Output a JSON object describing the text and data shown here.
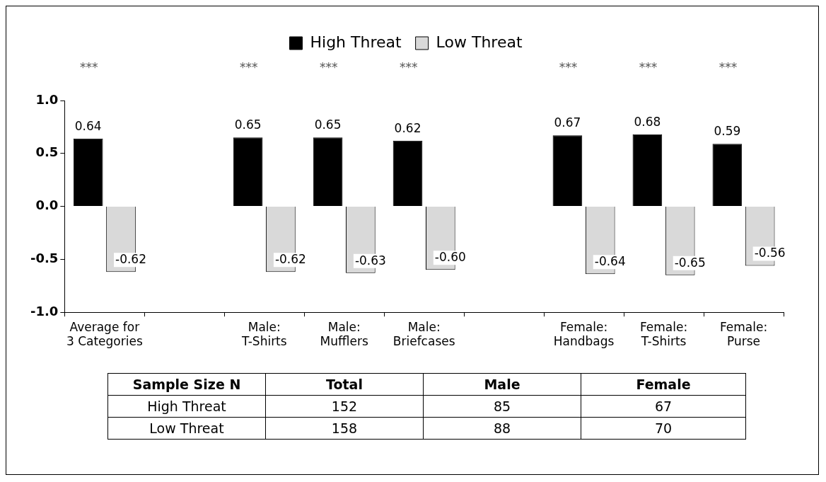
{
  "chart_data": [
    {
      "type": "bar",
      "categories": [
        "Average for\n3 Categories",
        null,
        "Male:\nT-Shirts",
        "Male:\nMufflers",
        "Male:\nBriefcases",
        null,
        "Female:\nHandbags",
        "Female:\nT-Shirts",
        "Female:\nPurse"
      ],
      "series": [
        {
          "name": "High Threat",
          "color": "#000000",
          "values": [
            0.64,
            null,
            0.65,
            0.65,
            0.62,
            null,
            0.67,
            0.68,
            0.59
          ],
          "value_labels": [
            "0.64",
            null,
            "0.65",
            "0.65",
            "0.62",
            null,
            "0.67",
            "0.68",
            "0.59"
          ]
        },
        {
          "name": "Low Threat",
          "color": "#d9d9d9",
          "values": [
            -0.62,
            null,
            -0.62,
            -0.63,
            -0.6,
            null,
            -0.64,
            -0.65,
            -0.56
          ],
          "value_labels": [
            "-0.62",
            null,
            "-0.62",
            "-0.63",
            "-0.60",
            null,
            "-0.64",
            "-0.65",
            "-0.56"
          ]
        }
      ],
      "ylim": [
        -1.0,
        1.0
      ],
      "yticks": [
        {
          "value": -1.0,
          "label": "-1.0"
        },
        {
          "value": -0.5,
          "label": "-0.5"
        },
        {
          "value": 0,
          "label": "0.0"
        },
        {
          "value": 0.5,
          "label": "0.5"
        },
        {
          "value": 1.0,
          "label": "1.0"
        }
      ],
      "legend": "top",
      "grid": false,
      "annotations": [
        "***",
        "***",
        "***",
        "***",
        "***",
        "***",
        "***"
      ]
    },
    {
      "type": "other",
      "ylabel": "Sample Size N",
      "data_labels": true,
      "categories": [
        "Total",
        "Male",
        "Female"
      ],
      "series": [
        {
          "name": "High Threat",
          "values": [
            152,
            85,
            67
          ]
        },
        {
          "name": "Low Threat",
          "values": [
            158,
            88,
            70
          ]
        }
      ]
    }
  ]
}
